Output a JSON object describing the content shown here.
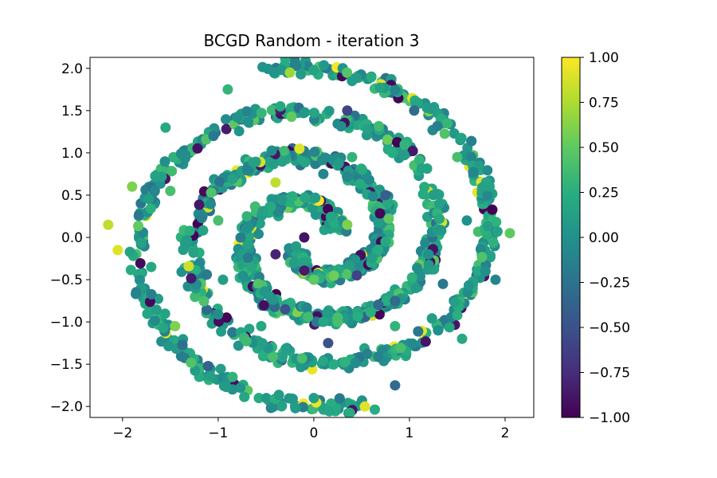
{
  "chart_data": {
    "type": "scatter",
    "title": "BCGD Random - iteration 3",
    "xlabel": "",
    "ylabel": "",
    "xlim": [
      -2.34,
      2.3
    ],
    "ylim": [
      -2.13,
      2.13
    ],
    "xticks": [
      -2,
      -1,
      0,
      1,
      2
    ],
    "xtick_labels": [
      "−2",
      "−1",
      "0",
      "1",
      "2"
    ],
    "yticks": [
      -2.0,
      -1.5,
      -1.0,
      -0.5,
      0.0,
      0.5,
      1.0,
      1.5,
      2.0
    ],
    "ytick_labels": [
      "−2.0",
      "−1.5",
      "−1.0",
      "−0.5",
      "0.0",
      "0.5",
      "1.0",
      "1.5",
      "2.0"
    ],
    "grid": false,
    "colormap": "viridis",
    "colorbar": {
      "range": [
        -1.0,
        1.0
      ],
      "ticks": [
        -1.0,
        -0.75,
        -0.5,
        -0.25,
        0.0,
        0.25,
        0.5,
        0.75,
        1.0
      ],
      "tick_labels": [
        "−1.00",
        "−0.75",
        "−0.50",
        "−0.25",
        "0.00",
        "0.25",
        "0.50",
        "0.75",
        "1.00"
      ]
    },
    "structure": "two interleaved spiral arms (points centered near origin) spanning x ≈ −2.15 to 2.1, y ≈ −1.95 to 1.95",
    "points_sample": [
      {
        "x": -2.15,
        "y": 0.15,
        "c": 0.8
      },
      {
        "x": -2.05,
        "y": -0.15,
        "c": 0.9
      },
      {
        "x": -1.9,
        "y": 0.6,
        "c": 0.6
      },
      {
        "x": -1.55,
        "y": 1.3,
        "c": 0.2
      },
      {
        "x": -0.9,
        "y": 1.75,
        "c": 0.3
      },
      {
        "x": -0.25,
        "y": 1.95,
        "c": 0.7
      },
      {
        "x": 0.4,
        "y": 1.85,
        "c": 0.1
      },
      {
        "x": 1.05,
        "y": 1.5,
        "c": -0.3
      },
      {
        "x": 1.5,
        "y": 0.95,
        "c": 0.4
      },
      {
        "x": 1.6,
        "y": 0.2,
        "c": 0.0
      },
      {
        "x": 1.35,
        "y": -0.55,
        "c": -0.2
      },
      {
        "x": 0.85,
        "y": -1.05,
        "c": 0.3
      },
      {
        "x": 0.15,
        "y": -1.25,
        "c": -0.5
      },
      {
        "x": -0.55,
        "y": -1.05,
        "c": 0.2
      },
      {
        "x": -0.95,
        "y": -0.5,
        "c": 0.1
      },
      {
        "x": -1.0,
        "y": 0.2,
        "c": 0.4
      },
      {
        "x": -0.7,
        "y": 0.8,
        "c": -0.1
      },
      {
        "x": -0.15,
        "y": 1.05,
        "c": 0.9
      },
      {
        "x": 0.4,
        "y": 0.95,
        "c": 0.3
      },
      {
        "x": 0.75,
        "y": 0.5,
        "c": -0.4
      },
      {
        "x": 0.75,
        "y": -0.05,
        "c": 0.2
      },
      {
        "x": 0.45,
        "y": -0.45,
        "c": -0.6
      },
      {
        "x": 0.0,
        "y": -0.5,
        "c": 0.5
      },
      {
        "x": -0.4,
        "y": -0.2,
        "c": -0.8
      },
      {
        "x": 2.05,
        "y": 0.05,
        "c": 0.5
      },
      {
        "x": 1.9,
        "y": -0.5,
        "c": -0.1
      },
      {
        "x": 1.55,
        "y": -1.2,
        "c": 0.2
      },
      {
        "x": 0.85,
        "y": -1.75,
        "c": -0.3
      },
      {
        "x": 0.0,
        "y": -1.9,
        "c": 0.1
      },
      {
        "x": -0.85,
        "y": -1.65,
        "c": 0.3
      },
      {
        "x": -1.45,
        "y": -1.05,
        "c": 0.6
      },
      {
        "x": -1.7,
        "y": -0.35,
        "c": 0.2
      },
      {
        "x": -1.5,
        "y": 0.55,
        "c": 0.4
      },
      {
        "x": -1.05,
        "y": 1.2,
        "c": -0.2
      },
      {
        "x": -0.35,
        "y": 1.55,
        "c": 0.2
      },
      {
        "x": 0.35,
        "y": 1.5,
        "c": -0.6
      },
      {
        "x": 0.95,
        "y": 1.1,
        "c": 0.3
      },
      {
        "x": 1.25,
        "y": 0.5,
        "c": 0.1
      },
      {
        "x": 1.2,
        "y": -0.2,
        "c": 0.0
      },
      {
        "x": 0.85,
        "y": -0.75,
        "c": -0.3
      },
      {
        "x": 0.25,
        "y": -0.95,
        "c": 0.4
      },
      {
        "x": -0.3,
        "y": -0.85,
        "c": -0.5
      },
      {
        "x": -0.65,
        "y": -0.35,
        "c": 0.2
      },
      {
        "x": -0.7,
        "y": 0.25,
        "c": 0.3
      },
      {
        "x": -0.4,
        "y": 0.65,
        "c": 0.8
      },
      {
        "x": 0.1,
        "y": 0.75,
        "c": -0.1
      },
      {
        "x": 0.35,
        "y": 0.15,
        "c": 0.6
      },
      {
        "x": -0.1,
        "y": 0.0,
        "c": -0.9
      }
    ]
  }
}
